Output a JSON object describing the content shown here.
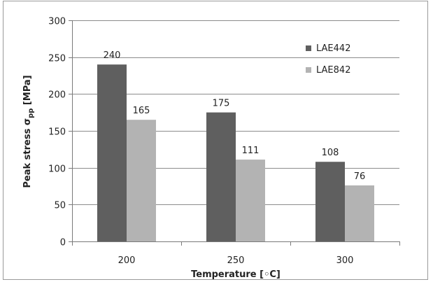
{
  "chart_data": {
    "type": "bar",
    "categories": [
      "200",
      "250",
      "300"
    ],
    "series": [
      {
        "name": "LAE442",
        "values": [
          240,
          175,
          108
        ],
        "color": "#5f5f5f"
      },
      {
        "name": "LAE842",
        "values": [
          165,
          111,
          76
        ],
        "color": "#b3b3b3"
      }
    ],
    "xlabel": "Temperature [◦C]",
    "ylabel": {
      "main": "Peak  stress  σ",
      "subscript": "pp",
      "unit": " [MPa]"
    },
    "ylim": [
      0,
      300
    ],
    "yticks": [
      0,
      50,
      100,
      150,
      200,
      250,
      300
    ],
    "grid": true,
    "legend_position": "top-right"
  }
}
